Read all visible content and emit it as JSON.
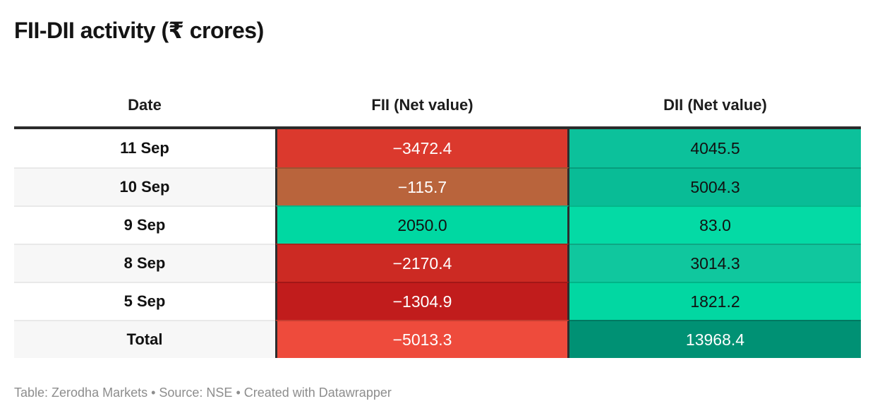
{
  "title": "FII-DII activity (₹ crores)",
  "footer": "Table: Zerodha Markets • Source: NSE • Created with Datawrapper",
  "table": {
    "columns": [
      {
        "label": "Date"
      },
      {
        "label": "FII (Net value)"
      },
      {
        "label": "DII (Net value)"
      }
    ],
    "rows": [
      {
        "date": "11 Sep",
        "fii": "−3472.4",
        "dii": "4045.5",
        "date_bg": "#ffffff",
        "fii_bg": "#db392d",
        "fii_text": "#ffffff",
        "dii_bg": "#0cc19b",
        "dii_text": "#111111"
      },
      {
        "date": "10 Sep",
        "fii": "−115.7",
        "dii": "5004.3",
        "date_bg": "#f7f7f7",
        "fii_bg": "#b9643c",
        "fii_text": "#ffffff",
        "dii_bg": "#09bc96",
        "dii_text": "#111111"
      },
      {
        "date": "9 Sep",
        "fii": "2050.0",
        "dii": "83.0",
        "date_bg": "#ffffff",
        "fii_bg": "#00d8a2",
        "fii_text": "#111111",
        "dii_bg": "#04daa5",
        "dii_text": "#111111"
      },
      {
        "date": "8 Sep",
        "fii": "−2170.4",
        "dii": "3014.3",
        "date_bg": "#f7f7f7",
        "fii_bg": "#cc2a23",
        "fii_text": "#ffffff",
        "dii_bg": "#10c79e",
        "dii_text": "#111111"
      },
      {
        "date": "5 Sep",
        "fii": "−1304.9",
        "dii": "1821.2",
        "date_bg": "#ffffff",
        "fii_bg": "#c11c1c",
        "fii_text": "#ffffff",
        "dii_bg": "#02d7a2",
        "dii_text": "#111111"
      },
      {
        "date": "Total",
        "fii": "−5013.3",
        "dii": "13968.4",
        "date_bg": "#f7f7f7",
        "fii_bg": "#ee4b3c",
        "fii_text": "#ffffff",
        "dii_bg": "#009174",
        "dii_text": "#ffffff"
      }
    ]
  },
  "colors": {
    "header_rule": "#2b2b2b",
    "column_separator": "#2d2d2d",
    "date_row_separator": "#e9e9e9",
    "title_text": "#141414",
    "footer_text": "#8d8d8d",
    "negative_red": "#db392d",
    "positive_green": "#00d8a2",
    "total_dii_teal": "#009174"
  },
  "chart_data": {
    "type": "table",
    "title": "FII-DII activity (₹ crores)",
    "columns": [
      "Date",
      "FII (Net value)",
      "DII (Net value)"
    ],
    "rows": [
      [
        "11 Sep",
        -3472.4,
        4045.5
      ],
      [
        "10 Sep",
        -115.7,
        5004.3
      ],
      [
        "9 Sep",
        2050.0,
        83.0
      ],
      [
        "8 Sep",
        -2170.4,
        3014.3
      ],
      [
        "5 Sep",
        -1304.9,
        1821.2
      ],
      [
        "Total",
        -5013.3,
        13968.4
      ]
    ],
    "layout_hints": "heatmap-colored cells: reds/brown for negative FII values, teal/mint greens for positive DII values; darker teal on Total row; zebra striping on Date column",
    "source": "Table: Zerodha Markets • Source: NSE • Created with Datawrapper"
  }
}
